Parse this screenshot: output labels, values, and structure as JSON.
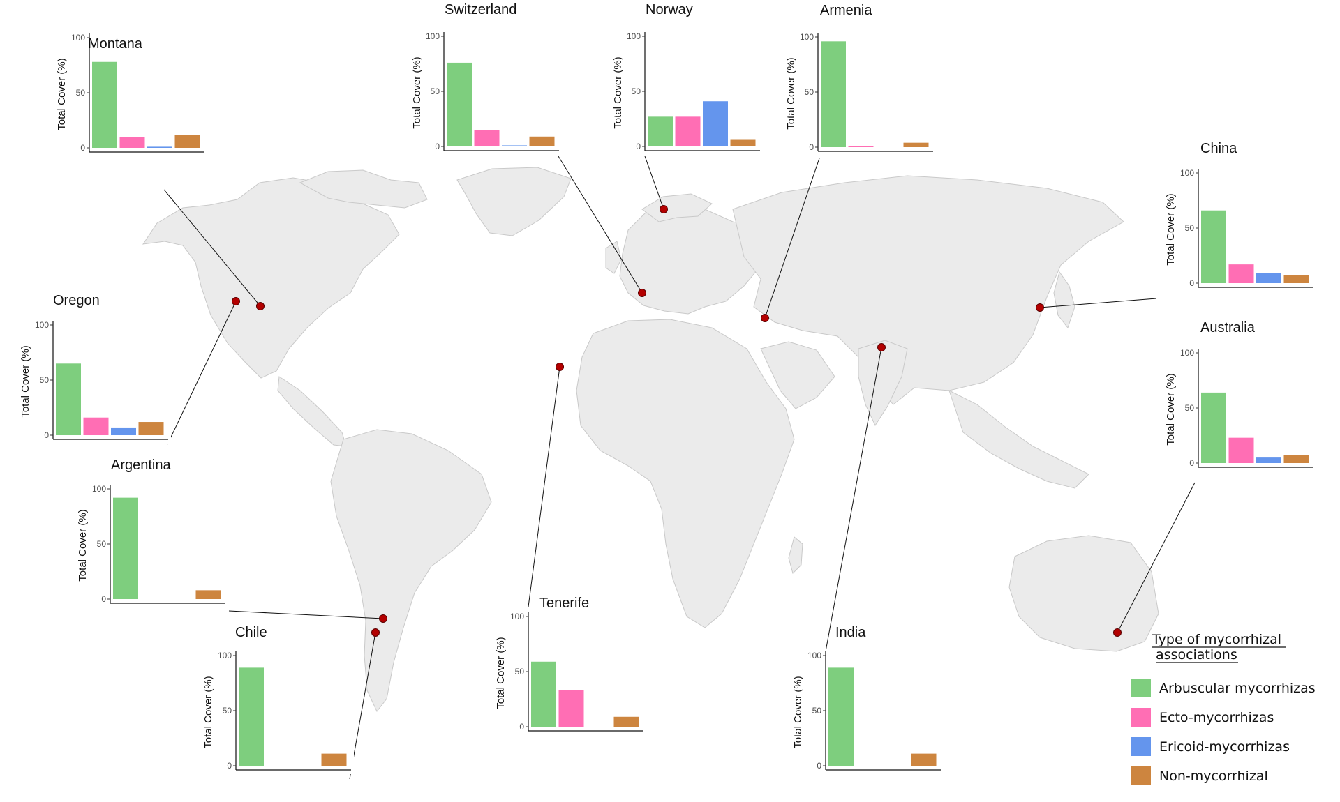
{
  "chart_data": {
    "type": "bar",
    "categories": [
      "Arbuscular mycorrhizas",
      "Ecto-mycorrhizas",
      "Ericoid-mycorrhizas",
      "Non-mycorrhizal"
    ],
    "colors": {
      "Arbuscular mycorrhizas": "#7ece7e",
      "Ecto-mycorrhizas": "#ff6eb4",
      "Ericoid-mycorrhizas": "#6495ed",
      "Non-mycorrhizal": "#cd853f",
      "site_marker": "#b30000",
      "land": "#ebebeb"
    },
    "ylabel": "Total Cover (%)",
    "ylim": [
      0,
      100
    ],
    "yticks": [
      "100",
      "50",
      "0"
    ],
    "legend": {
      "title": "Type of mycorrhizal associations",
      "position": "bottom-right",
      "items": [
        "Arbuscular mycorrhizas",
        "Ecto-mycorrhizas",
        "Ericoid-mycorrhizas",
        "Non-mycorrhizal"
      ]
    },
    "sites": [
      {
        "name": "Montana",
        "values": [
          78,
          10,
          1,
          12
        ]
      },
      {
        "name": "Switzerland",
        "values": [
          76,
          15,
          1,
          9
        ]
      },
      {
        "name": "Norway",
        "values": [
          27,
          27,
          41,
          6
        ]
      },
      {
        "name": "Armenia",
        "values": [
          96,
          1,
          0,
          4
        ]
      },
      {
        "name": "China",
        "values": [
          66,
          17,
          9,
          7
        ]
      },
      {
        "name": "Oregon",
        "values": [
          65,
          16,
          7,
          12
        ]
      },
      {
        "name": "Australia",
        "values": [
          64,
          23,
          5,
          7
        ]
      },
      {
        "name": "Argentina",
        "values": [
          92,
          0,
          0,
          8
        ]
      },
      {
        "name": "Tenerife",
        "values": [
          59,
          33,
          0,
          9
        ]
      },
      {
        "name": "Chile",
        "values": [
          89,
          0,
          0,
          11
        ]
      },
      {
        "name": "India",
        "values": [
          89,
          0,
          0,
          11
        ]
      }
    ]
  }
}
